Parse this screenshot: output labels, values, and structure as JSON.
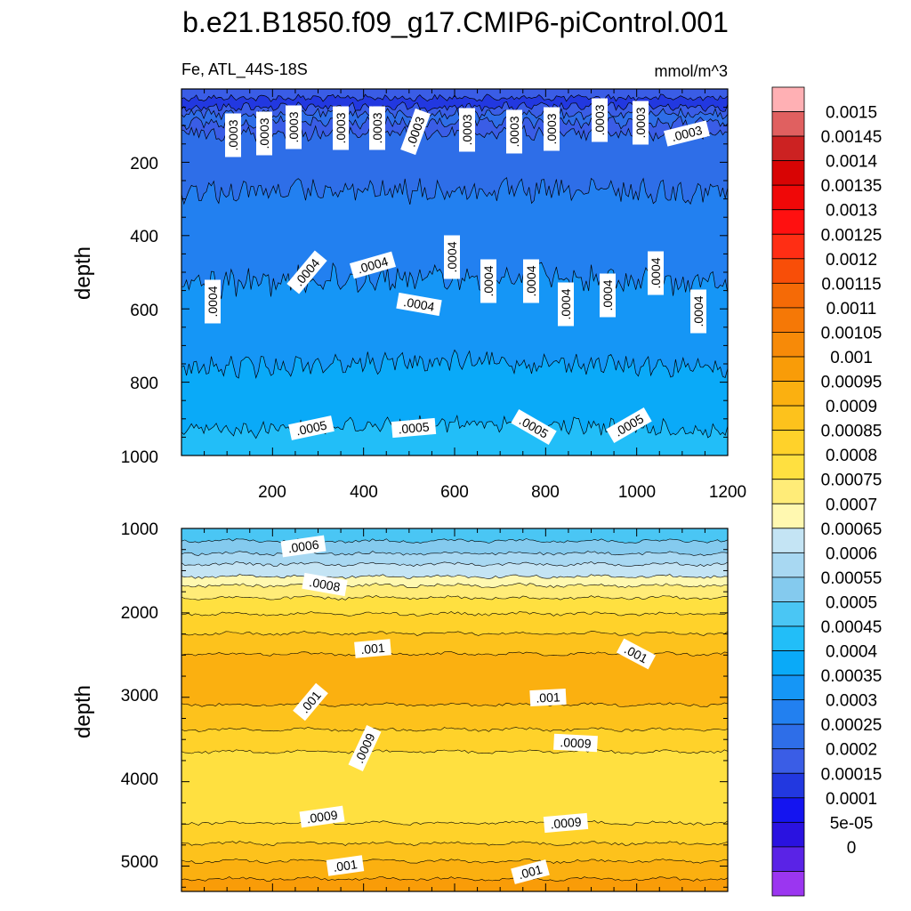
{
  "title": "b.e21.B1850.f09_g17.CMIP6-piControl.001",
  "colors": {
    "levels": [
      "#9b36f0",
      "#5a23e6",
      "#2a12e0",
      "#1414f0",
      "#2238e0",
      "#3a5de6",
      "#2e6ee8",
      "#2280f0",
      "#1596f6",
      "#0aaaf8",
      "#22bef8",
      "#4ac6f4",
      "#84caee",
      "#a8d8f2",
      "#c4e4f4",
      "#fff8b0",
      "#ffec78",
      "#ffe040",
      "#ffd22a",
      "#fdc21c",
      "#fbb010",
      "#f99c08",
      "#f78a08",
      "#f57806",
      "#f56a06",
      "#f84e08",
      "#ff2e14",
      "#ff1010",
      "#f00808",
      "#d80404",
      "#cc2222",
      "#e06060",
      "#ffb0b4"
    ]
  },
  "colorbar": {
    "labels": [
      "0.0015",
      "0.00145",
      "0.0014",
      "0.00135",
      "0.0013",
      "0.00125",
      "0.0012",
      "0.00115",
      "0.0011",
      "0.00105",
      "0.001",
      "0.00095",
      "0.0009",
      "0.00085",
      "0.0008",
      "0.00075",
      "0.0007",
      "0.00065",
      "0.0006",
      "0.00055",
      "0.0005",
      "0.00045",
      "0.0004",
      "0.00035",
      "0.0003",
      "0.00025",
      "0.0002",
      "0.00015",
      "0.0001",
      "5e-05",
      "0"
    ]
  },
  "chart_data": [
    {
      "type": "heatmap",
      "subtitle_left": "Fe, ATL_44S-18S",
      "subtitle_right": "mmol/m^3",
      "ylabel": "depth",
      "xlim": [
        0,
        1200
      ],
      "ylim": [
        1000,
        0
      ],
      "x_tick_labels": [
        "200",
        "400",
        "600",
        "800",
        "1000",
        "1200"
      ],
      "y_tick_labels": [
        "200",
        "400",
        "600",
        "800",
        "1000"
      ],
      "contour_labels": [
        ".0003",
        ".0003",
        ".0003",
        ".0003",
        ".0003",
        ".0003",
        ".0003",
        ".0003",
        ".0003",
        ".0003",
        ".0003",
        ".0003",
        ".0004",
        ".0004",
        ".0004",
        ".0004",
        ".0004",
        ".0004",
        ".0004",
        ".0004",
        ".0004",
        ".0004",
        ".0004",
        ".0005",
        ".0005",
        ".0005",
        ".0005"
      ]
    },
    {
      "type": "heatmap",
      "ylabel": "depth",
      "xlim": [
        0,
        1200
      ],
      "ylim": [
        5300,
        1000
      ],
      "y_tick_labels": [
        "1000",
        "2000",
        "3000",
        "4000",
        "5000"
      ],
      "contour_labels": [
        ".0006",
        ".0008",
        ".001",
        ".001",
        ".001",
        ".001",
        ".0009",
        ".0009",
        ".0009",
        ".0009",
        ".001",
        ".001"
      ]
    }
  ]
}
